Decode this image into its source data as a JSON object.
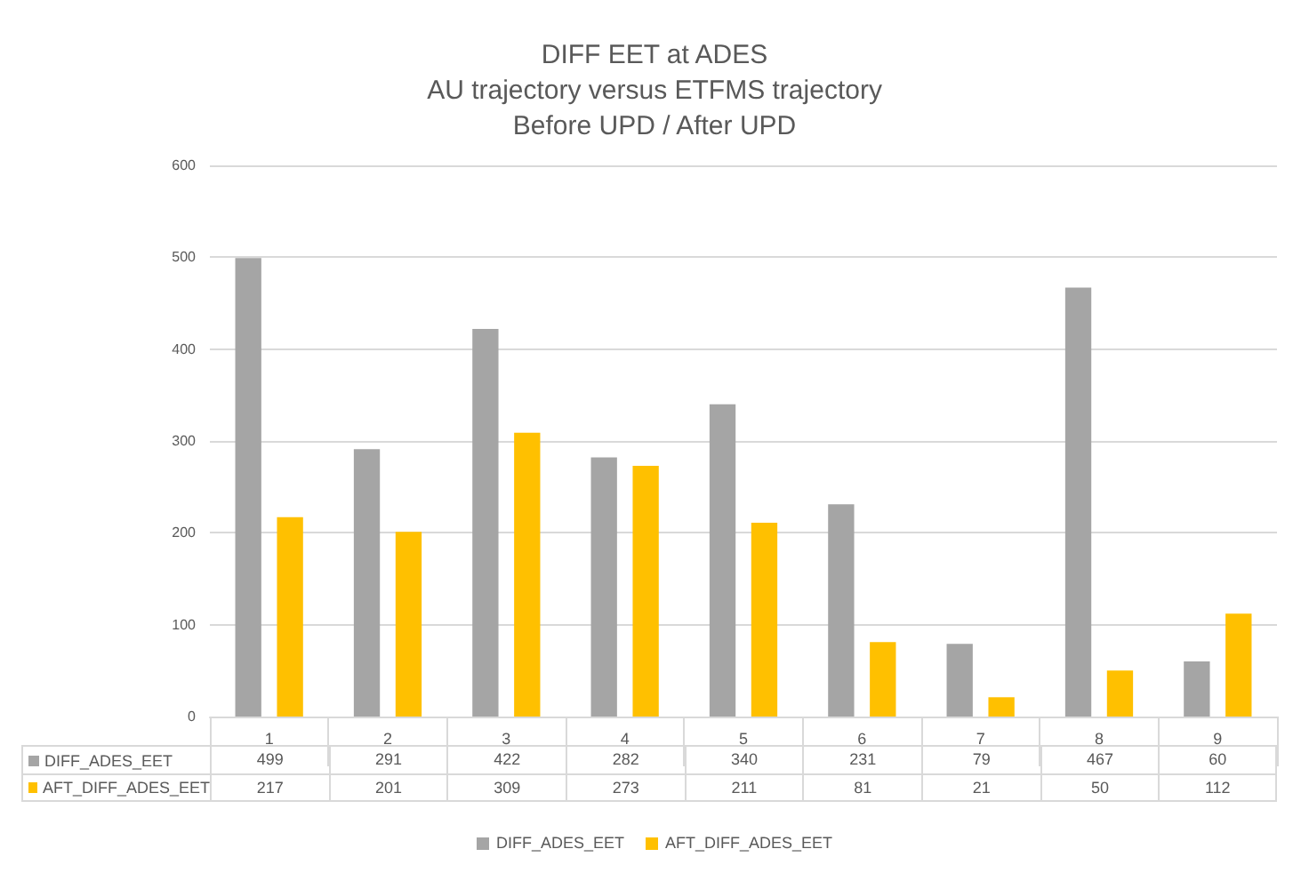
{
  "chart_data": {
    "type": "bar",
    "title": "DIFF EET at ADES\nAU trajectory versus ETFMS trajectory\nBefore UPD / After UPD",
    "categories": [
      "1",
      "2",
      "3",
      "4",
      "5",
      "6",
      "7",
      "8",
      "9"
    ],
    "series": [
      {
        "name": "DIFF_ADES_EET",
        "color": "#a5a5a5",
        "values": [
          499,
          291,
          422,
          282,
          340,
          231,
          79,
          467,
          60
        ]
      },
      {
        "name": "AFT_DIFF_ADES_EET",
        "color": "#ffc000",
        "values": [
          217,
          201,
          309,
          273,
          211,
          81,
          21,
          50,
          112
        ]
      }
    ],
    "ylim": [
      0,
      600
    ],
    "yticks": [
      0,
      100,
      200,
      300,
      400,
      500,
      600
    ],
    "grid": "y",
    "legend": "bottom",
    "data_labels": true
  }
}
